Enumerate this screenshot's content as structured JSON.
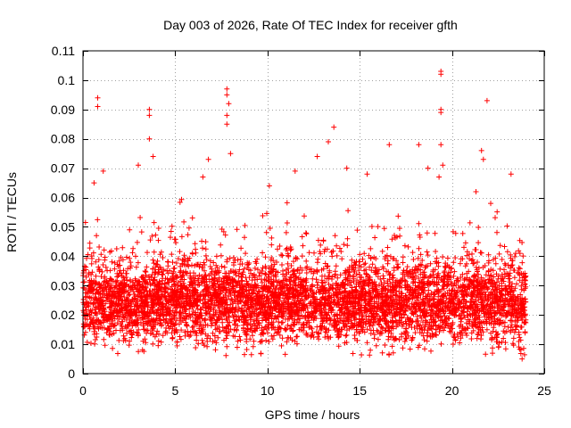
{
  "chart_data": {
    "type": "scatter",
    "title": "Day 003 of 2026, Rate Of TEC Index for receiver gfth",
    "xlabel": "GPS time / hours",
    "ylabel": "ROTI / TECUs",
    "xlim": [
      0,
      25
    ],
    "ylim": [
      0,
      0.11
    ],
    "x_ticks": [
      "0",
      "5",
      "10",
      "15",
      "20",
      "25"
    ],
    "y_ticks": [
      "0",
      "0.01",
      "0.02",
      "0.03",
      "0.04",
      "0.05",
      "0.06",
      "0.07",
      "0.08",
      "0.09",
      "0.1",
      "0.11"
    ],
    "grid": true,
    "marker": "+",
    "series": [
      {
        "name": "ROTI",
        "color": "#ff0000",
        "x_range": [
          0,
          24
        ],
        "typical_range": [
          0.01,
          0.04
        ],
        "median": 0.024,
        "notable_points": [
          {
            "x": 0.8,
            "y": 0.094
          },
          {
            "x": 0.8,
            "y": 0.091
          },
          {
            "x": 1.1,
            "y": 0.069
          },
          {
            "x": 0.6,
            "y": 0.065
          },
          {
            "x": 3.6,
            "y": 0.09
          },
          {
            "x": 3.6,
            "y": 0.088
          },
          {
            "x": 3.6,
            "y": 0.08
          },
          {
            "x": 3.8,
            "y": 0.074
          },
          {
            "x": 3.0,
            "y": 0.071
          },
          {
            "x": 6.8,
            "y": 0.073
          },
          {
            "x": 6.5,
            "y": 0.067
          },
          {
            "x": 7.8,
            "y": 0.097
          },
          {
            "x": 7.8,
            "y": 0.095
          },
          {
            "x": 7.9,
            "y": 0.092
          },
          {
            "x": 7.8,
            "y": 0.088
          },
          {
            "x": 7.8,
            "y": 0.085
          },
          {
            "x": 8.0,
            "y": 0.075
          },
          {
            "x": 10.1,
            "y": 0.064
          },
          {
            "x": 11.5,
            "y": 0.069
          },
          {
            "x": 12.7,
            "y": 0.074
          },
          {
            "x": 13.3,
            "y": 0.079
          },
          {
            "x": 13.6,
            "y": 0.084
          },
          {
            "x": 14.3,
            "y": 0.07
          },
          {
            "x": 15.4,
            "y": 0.068
          },
          {
            "x": 16.6,
            "y": 0.078
          },
          {
            "x": 18.2,
            "y": 0.078
          },
          {
            "x": 18.7,
            "y": 0.07
          },
          {
            "x": 19.4,
            "y": 0.103
          },
          {
            "x": 19.4,
            "y": 0.102
          },
          {
            "x": 19.4,
            "y": 0.09
          },
          {
            "x": 19.4,
            "y": 0.089
          },
          {
            "x": 19.4,
            "y": 0.078
          },
          {
            "x": 19.5,
            "y": 0.071
          },
          {
            "x": 21.6,
            "y": 0.076
          },
          {
            "x": 21.7,
            "y": 0.073
          },
          {
            "x": 21.9,
            "y": 0.093
          },
          {
            "x": 22.1,
            "y": 0.058
          },
          {
            "x": 23.2,
            "y": 0.068
          },
          {
            "x": 23.8,
            "y": 0.005
          },
          {
            "x": 19.3,
            "y": 0.067
          },
          {
            "x": 21.3,
            "y": 0.062
          }
        ]
      }
    ]
  }
}
